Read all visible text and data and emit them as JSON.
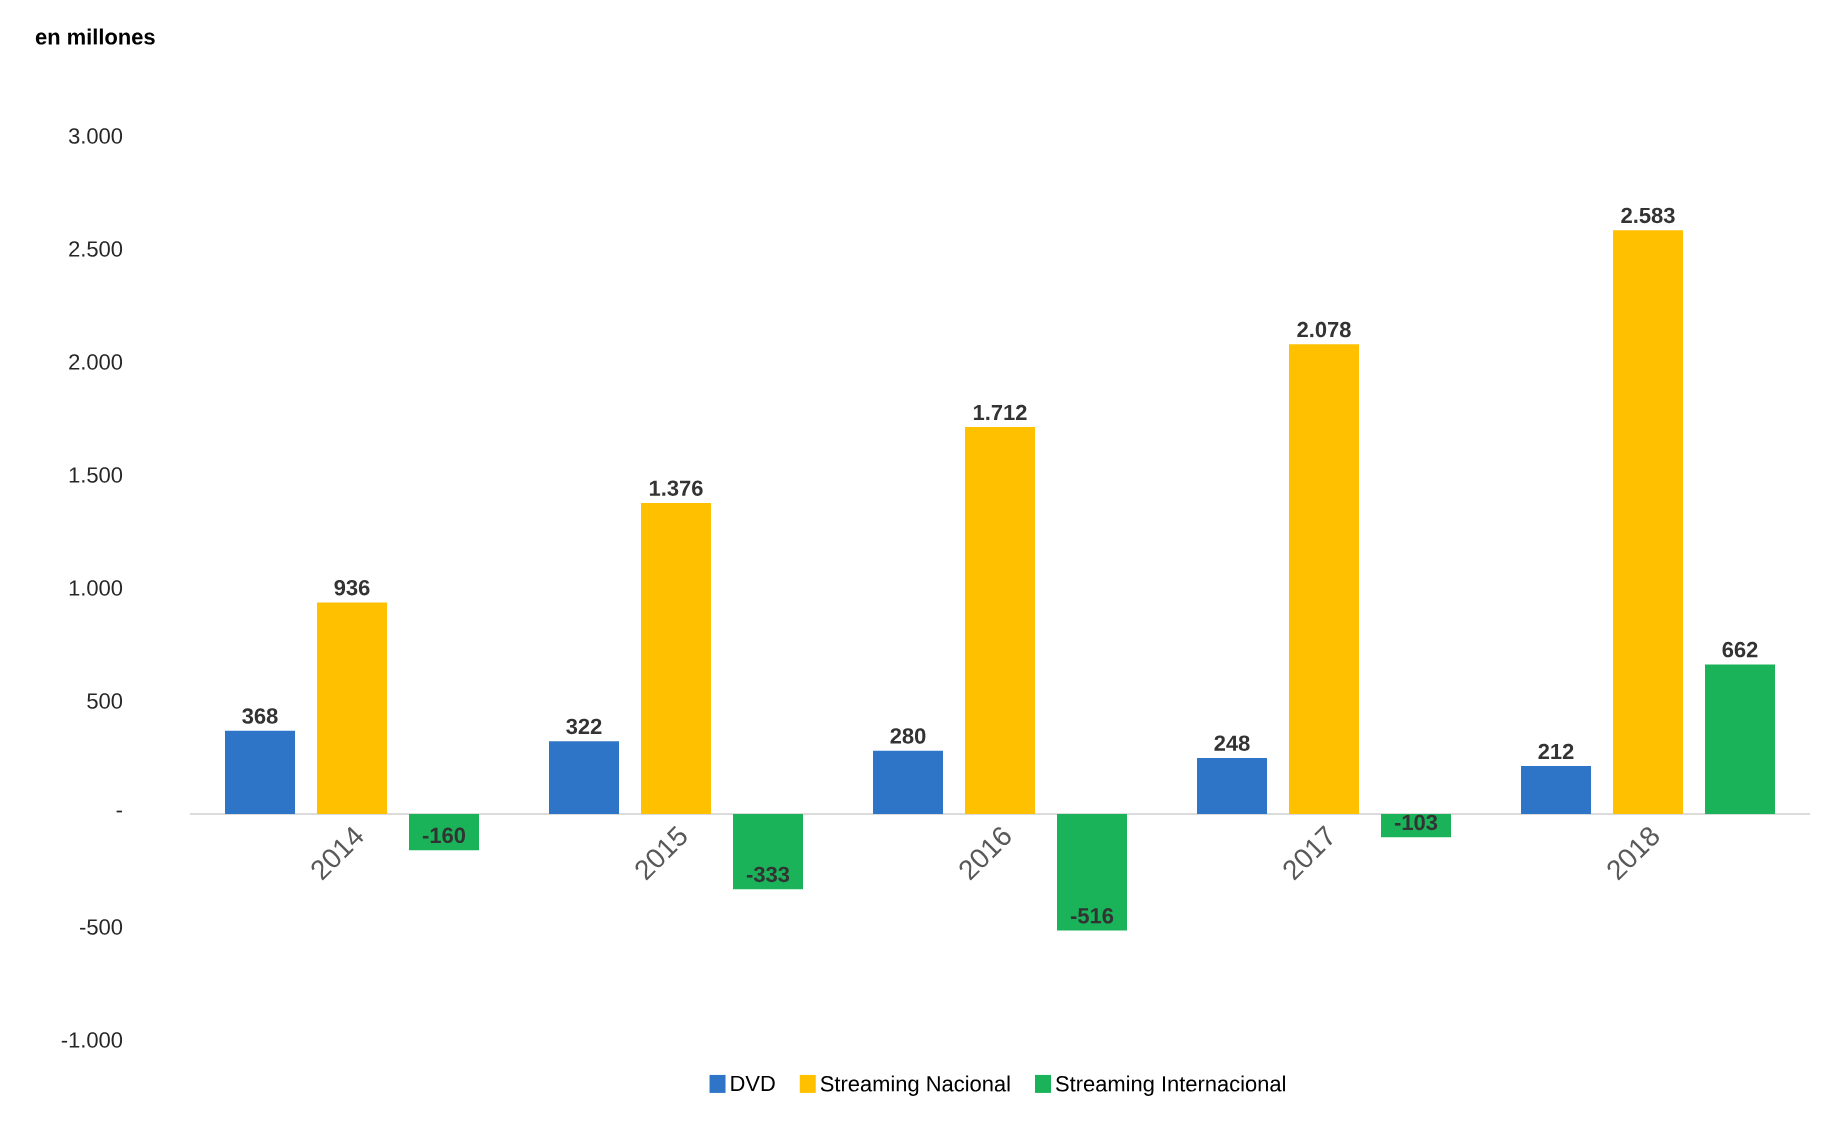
{
  "chart_data": {
    "type": "bar",
    "ylabel": "en millones",
    "categories": [
      "2014",
      "2015",
      "2016",
      "2017",
      "2018"
    ],
    "series": [
      {
        "name": "DVD",
        "color": "#2e75c8",
        "values": [
          368,
          322,
          280,
          248,
          212
        ],
        "value_labels": [
          "368",
          "322",
          "280",
          "248",
          "212"
        ]
      },
      {
        "name": "Streaming Nacional",
        "color": "#ffc000",
        "values": [
          936,
          1376,
          1712,
          2078,
          2583
        ],
        "value_labels": [
          "936",
          "1.376",
          "1.712",
          "2.078",
          "2.583"
        ]
      },
      {
        "name": "Streaming Internacional",
        "color": "#1bb35a",
        "values": [
          -160,
          -333,
          -516,
          -103,
          662
        ],
        "value_labels": [
          "-160",
          "-333",
          "-516",
          "-103",
          "662"
        ]
      }
    ],
    "ylim": [
      -1000,
      3000
    ],
    "yticks": [
      {
        "value": -1000,
        "label": "-1.000"
      },
      -500,
      {
        "value": 0,
        "label": "-"
      },
      500,
      {
        "value": 1000,
        "label": "1.000"
      },
      {
        "value": 1500,
        "label": "1.500"
      },
      {
        "value": 2000,
        "label": "2.000"
      },
      {
        "value": 2500,
        "label": "2.500"
      },
      {
        "value": 3000,
        "label": "3.000"
      }
    ],
    "legend": "bottom"
  }
}
